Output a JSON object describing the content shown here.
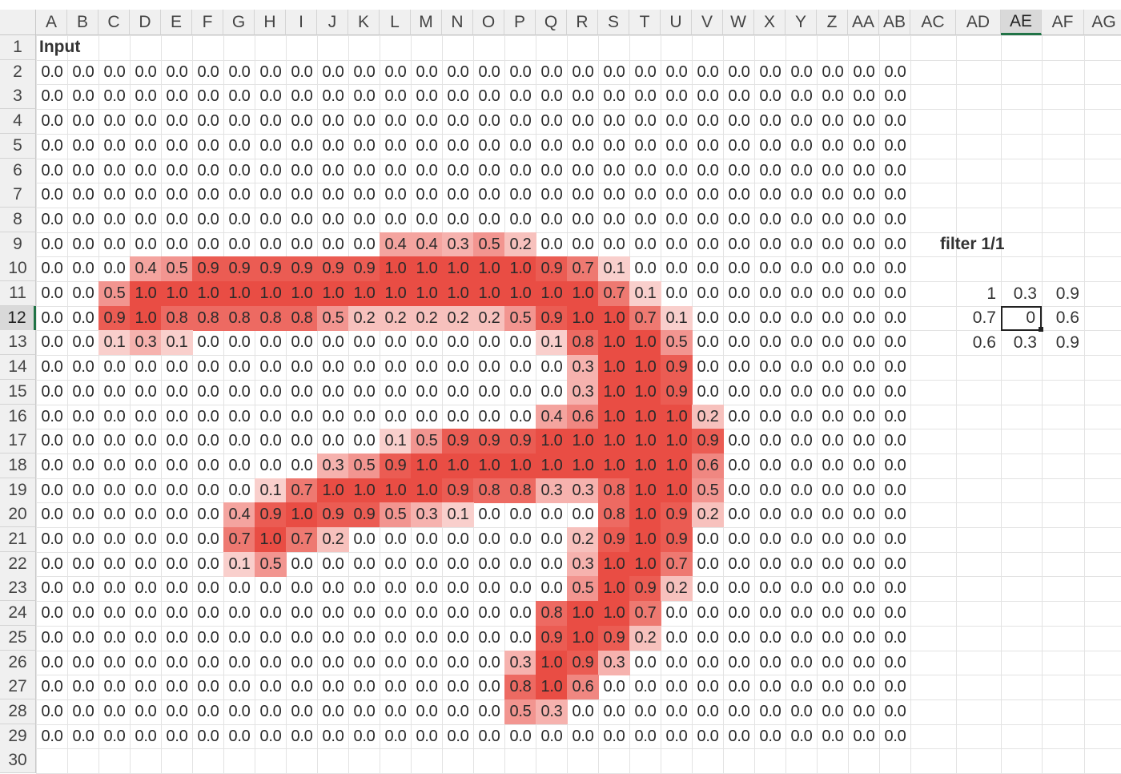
{
  "columns": [
    "A",
    "B",
    "C",
    "D",
    "E",
    "F",
    "G",
    "H",
    "I",
    "J",
    "K",
    "L",
    "M",
    "N",
    "O",
    "P",
    "Q",
    "R",
    "S",
    "T",
    "U",
    "V",
    "W",
    "X",
    "Y",
    "Z",
    "AA",
    "AB",
    "AC",
    "AD",
    "AE",
    "AF",
    "AG"
  ],
  "selected_column": "AE",
  "rows": [
    "1",
    "2",
    "3",
    "4",
    "5",
    "6",
    "7",
    "8",
    "9",
    "10",
    "11",
    "12",
    "13",
    "14",
    "15",
    "16",
    "17",
    "18",
    "19",
    "20",
    "21",
    "22",
    "23",
    "24",
    "25",
    "26",
    "27",
    "28",
    "29",
    "30"
  ],
  "selected_row": "12",
  "input_label": "Input",
  "filter_label": "filter 1/1",
  "filter": [
    [
      "1",
      "0.3",
      "0.9"
    ],
    [
      "0.7",
      "0",
      "0.6"
    ],
    [
      "0.6",
      "0.3",
      "0.9"
    ]
  ],
  "heat_color": "#e8443a",
  "grid": [
    [
      "0.0",
      "0.0",
      "0.0",
      "0.0",
      "0.0",
      "0.0",
      "0.0",
      "0.0",
      "0.0",
      "0.0",
      "0.0",
      "0.0",
      "0.0",
      "0.0",
      "0.0",
      "0.0",
      "0.0",
      "0.0",
      "0.0",
      "0.0",
      "0.0",
      "0.0",
      "0.0",
      "0.0",
      "0.0",
      "0.0",
      "0.0",
      "0.0"
    ],
    [
      "0.0",
      "0.0",
      "0.0",
      "0.0",
      "0.0",
      "0.0",
      "0.0",
      "0.0",
      "0.0",
      "0.0",
      "0.0",
      "0.0",
      "0.0",
      "0.0",
      "0.0",
      "0.0",
      "0.0",
      "0.0",
      "0.0",
      "0.0",
      "0.0",
      "0.0",
      "0.0",
      "0.0",
      "0.0",
      "0.0",
      "0.0",
      "0.0"
    ],
    [
      "0.0",
      "0.0",
      "0.0",
      "0.0",
      "0.0",
      "0.0",
      "0.0",
      "0.0",
      "0.0",
      "0.0",
      "0.0",
      "0.0",
      "0.0",
      "0.0",
      "0.0",
      "0.0",
      "0.0",
      "0.0",
      "0.0",
      "0.0",
      "0.0",
      "0.0",
      "0.0",
      "0.0",
      "0.0",
      "0.0",
      "0.0",
      "0.0"
    ],
    [
      "0.0",
      "0.0",
      "0.0",
      "0.0",
      "0.0",
      "0.0",
      "0.0",
      "0.0",
      "0.0",
      "0.0",
      "0.0",
      "0.0",
      "0.0",
      "0.0",
      "0.0",
      "0.0",
      "0.0",
      "0.0",
      "0.0",
      "0.0",
      "0.0",
      "0.0",
      "0.0",
      "0.0",
      "0.0",
      "0.0",
      "0.0",
      "0.0"
    ],
    [
      "0.0",
      "0.0",
      "0.0",
      "0.0",
      "0.0",
      "0.0",
      "0.0",
      "0.0",
      "0.0",
      "0.0",
      "0.0",
      "0.0",
      "0.0",
      "0.0",
      "0.0",
      "0.0",
      "0.0",
      "0.0",
      "0.0",
      "0.0",
      "0.0",
      "0.0",
      "0.0",
      "0.0",
      "0.0",
      "0.0",
      "0.0",
      "0.0"
    ],
    [
      "0.0",
      "0.0",
      "0.0",
      "0.0",
      "0.0",
      "0.0",
      "0.0",
      "0.0",
      "0.0",
      "0.0",
      "0.0",
      "0.0",
      "0.0",
      "0.0",
      "0.0",
      "0.0",
      "0.0",
      "0.0",
      "0.0",
      "0.0",
      "0.0",
      "0.0",
      "0.0",
      "0.0",
      "0.0",
      "0.0",
      "0.0",
      "0.0"
    ],
    [
      "0.0",
      "0.0",
      "0.0",
      "0.0",
      "0.0",
      "0.0",
      "0.0",
      "0.0",
      "0.0",
      "0.0",
      "0.0",
      "0.0",
      "0.0",
      "0.0",
      "0.0",
      "0.0",
      "0.0",
      "0.0",
      "0.0",
      "0.0",
      "0.0",
      "0.0",
      "0.0",
      "0.0",
      "0.0",
      "0.0",
      "0.0",
      "0.0"
    ],
    [
      "0.0",
      "0.0",
      "0.0",
      "0.0",
      "0.0",
      "0.0",
      "0.0",
      "0.0",
      "0.0",
      "0.0",
      "0.0",
      "0.4",
      "0.4",
      "0.3",
      "0.5",
      "0.2",
      "0.0",
      "0.0",
      "0.0",
      "0.0",
      "0.0",
      "0.0",
      "0.0",
      "0.0",
      "0.0",
      "0.0",
      "0.0",
      "0.0"
    ],
    [
      "0.0",
      "0.0",
      "0.0",
      "0.4",
      "0.5",
      "0.9",
      "0.9",
      "0.9",
      "0.9",
      "0.9",
      "0.9",
      "1.0",
      "1.0",
      "1.0",
      "1.0",
      "1.0",
      "0.9",
      "0.7",
      "0.1",
      "0.0",
      "0.0",
      "0.0",
      "0.0",
      "0.0",
      "0.0",
      "0.0",
      "0.0",
      "0.0"
    ],
    [
      "0.0",
      "0.0",
      "0.5",
      "1.0",
      "1.0",
      "1.0",
      "1.0",
      "1.0",
      "1.0",
      "1.0",
      "1.0",
      "1.0",
      "1.0",
      "1.0",
      "1.0",
      "1.0",
      "1.0",
      "1.0",
      "0.7",
      "0.1",
      "0.0",
      "0.0",
      "0.0",
      "0.0",
      "0.0",
      "0.0",
      "0.0",
      "0.0"
    ],
    [
      "0.0",
      "0.0",
      "0.9",
      "1.0",
      "0.8",
      "0.8",
      "0.8",
      "0.8",
      "0.8",
      "0.5",
      "0.2",
      "0.2",
      "0.2",
      "0.2",
      "0.2",
      "0.5",
      "0.9",
      "1.0",
      "1.0",
      "0.7",
      "0.1",
      "0.0",
      "0.0",
      "0.0",
      "0.0",
      "0.0",
      "0.0",
      "0.0"
    ],
    [
      "0.0",
      "0.0",
      "0.1",
      "0.3",
      "0.1",
      "0.0",
      "0.0",
      "0.0",
      "0.0",
      "0.0",
      "0.0",
      "0.0",
      "0.0",
      "0.0",
      "0.0",
      "0.0",
      "0.1",
      "0.8",
      "1.0",
      "1.0",
      "0.5",
      "0.0",
      "0.0",
      "0.0",
      "0.0",
      "0.0",
      "0.0",
      "0.0"
    ],
    [
      "0.0",
      "0.0",
      "0.0",
      "0.0",
      "0.0",
      "0.0",
      "0.0",
      "0.0",
      "0.0",
      "0.0",
      "0.0",
      "0.0",
      "0.0",
      "0.0",
      "0.0",
      "0.0",
      "0.0",
      "0.3",
      "1.0",
      "1.0",
      "0.9",
      "0.0",
      "0.0",
      "0.0",
      "0.0",
      "0.0",
      "0.0",
      "0.0"
    ],
    [
      "0.0",
      "0.0",
      "0.0",
      "0.0",
      "0.0",
      "0.0",
      "0.0",
      "0.0",
      "0.0",
      "0.0",
      "0.0",
      "0.0",
      "0.0",
      "0.0",
      "0.0",
      "0.0",
      "0.0",
      "0.3",
      "1.0",
      "1.0",
      "0.9",
      "0.0",
      "0.0",
      "0.0",
      "0.0",
      "0.0",
      "0.0",
      "0.0"
    ],
    [
      "0.0",
      "0.0",
      "0.0",
      "0.0",
      "0.0",
      "0.0",
      "0.0",
      "0.0",
      "0.0",
      "0.0",
      "0.0",
      "0.0",
      "0.0",
      "0.0",
      "0.0",
      "0.0",
      "0.4",
      "0.6",
      "1.0",
      "1.0",
      "1.0",
      "0.2",
      "0.0",
      "0.0",
      "0.0",
      "0.0",
      "0.0",
      "0.0"
    ],
    [
      "0.0",
      "0.0",
      "0.0",
      "0.0",
      "0.0",
      "0.0",
      "0.0",
      "0.0",
      "0.0",
      "0.0",
      "0.0",
      "0.1",
      "0.5",
      "0.9",
      "0.9",
      "0.9",
      "1.0",
      "1.0",
      "1.0",
      "1.0",
      "1.0",
      "0.9",
      "0.0",
      "0.0",
      "0.0",
      "0.0",
      "0.0",
      "0.0"
    ],
    [
      "0.0",
      "0.0",
      "0.0",
      "0.0",
      "0.0",
      "0.0",
      "0.0",
      "0.0",
      "0.0",
      "0.3",
      "0.5",
      "0.9",
      "1.0",
      "1.0",
      "1.0",
      "1.0",
      "1.0",
      "1.0",
      "1.0",
      "1.0",
      "1.0",
      "0.6",
      "0.0",
      "0.0",
      "0.0",
      "0.0",
      "0.0",
      "0.0"
    ],
    [
      "0.0",
      "0.0",
      "0.0",
      "0.0",
      "0.0",
      "0.0",
      "0.0",
      "0.1",
      "0.7",
      "1.0",
      "1.0",
      "1.0",
      "1.0",
      "0.9",
      "0.8",
      "0.8",
      "0.3",
      "0.3",
      "0.8",
      "1.0",
      "1.0",
      "0.5",
      "0.0",
      "0.0",
      "0.0",
      "0.0",
      "0.0",
      "0.0"
    ],
    [
      "0.0",
      "0.0",
      "0.0",
      "0.0",
      "0.0",
      "0.0",
      "0.4",
      "0.9",
      "1.0",
      "0.9",
      "0.9",
      "0.5",
      "0.3",
      "0.1",
      "0.0",
      "0.0",
      "0.0",
      "0.0",
      "0.8",
      "1.0",
      "0.9",
      "0.2",
      "0.0",
      "0.0",
      "0.0",
      "0.0",
      "0.0",
      "0.0"
    ],
    [
      "0.0",
      "0.0",
      "0.0",
      "0.0",
      "0.0",
      "0.0",
      "0.7",
      "1.0",
      "0.7",
      "0.2",
      "0.0",
      "0.0",
      "0.0",
      "0.0",
      "0.0",
      "0.0",
      "0.0",
      "0.2",
      "0.9",
      "1.0",
      "0.9",
      "0.0",
      "0.0",
      "0.0",
      "0.0",
      "0.0",
      "0.0",
      "0.0"
    ],
    [
      "0.0",
      "0.0",
      "0.0",
      "0.0",
      "0.0",
      "0.0",
      "0.1",
      "0.5",
      "0.0",
      "0.0",
      "0.0",
      "0.0",
      "0.0",
      "0.0",
      "0.0",
      "0.0",
      "0.0",
      "0.3",
      "1.0",
      "1.0",
      "0.7",
      "0.0",
      "0.0",
      "0.0",
      "0.0",
      "0.0",
      "0.0",
      "0.0"
    ],
    [
      "0.0",
      "0.0",
      "0.0",
      "0.0",
      "0.0",
      "0.0",
      "0.0",
      "0.0",
      "0.0",
      "0.0",
      "0.0",
      "0.0",
      "0.0",
      "0.0",
      "0.0",
      "0.0",
      "0.0",
      "0.5",
      "1.0",
      "0.9",
      "0.2",
      "0.0",
      "0.0",
      "0.0",
      "0.0",
      "0.0",
      "0.0",
      "0.0"
    ],
    [
      "0.0",
      "0.0",
      "0.0",
      "0.0",
      "0.0",
      "0.0",
      "0.0",
      "0.0",
      "0.0",
      "0.0",
      "0.0",
      "0.0",
      "0.0",
      "0.0",
      "0.0",
      "0.0",
      "0.8",
      "1.0",
      "1.0",
      "0.7",
      "0.0",
      "0.0",
      "0.0",
      "0.0",
      "0.0",
      "0.0",
      "0.0",
      "0.0"
    ],
    [
      "0.0",
      "0.0",
      "0.0",
      "0.0",
      "0.0",
      "0.0",
      "0.0",
      "0.0",
      "0.0",
      "0.0",
      "0.0",
      "0.0",
      "0.0",
      "0.0",
      "0.0",
      "0.0",
      "0.9",
      "1.0",
      "0.9",
      "0.2",
      "0.0",
      "0.0",
      "0.0",
      "0.0",
      "0.0",
      "0.0",
      "0.0",
      "0.0"
    ],
    [
      "0.0",
      "0.0",
      "0.0",
      "0.0",
      "0.0",
      "0.0",
      "0.0",
      "0.0",
      "0.0",
      "0.0",
      "0.0",
      "0.0",
      "0.0",
      "0.0",
      "0.0",
      "0.3",
      "1.0",
      "0.9",
      "0.3",
      "0.0",
      "0.0",
      "0.0",
      "0.0",
      "0.0",
      "0.0",
      "0.0",
      "0.0",
      "0.0"
    ],
    [
      "0.0",
      "0.0",
      "0.0",
      "0.0",
      "0.0",
      "0.0",
      "0.0",
      "0.0",
      "0.0",
      "0.0",
      "0.0",
      "0.0",
      "0.0",
      "0.0",
      "0.0",
      "0.8",
      "1.0",
      "0.6",
      "0.0",
      "0.0",
      "0.0",
      "0.0",
      "0.0",
      "0.0",
      "0.0",
      "0.0",
      "0.0",
      "0.0"
    ],
    [
      "0.0",
      "0.0",
      "0.0",
      "0.0",
      "0.0",
      "0.0",
      "0.0",
      "0.0",
      "0.0",
      "0.0",
      "0.0",
      "0.0",
      "0.0",
      "0.0",
      "0.0",
      "0.5",
      "0.3",
      "0.0",
      "0.0",
      "0.0",
      "0.0",
      "0.0",
      "0.0",
      "0.0",
      "0.0",
      "0.0",
      "0.0",
      "0.0"
    ],
    [
      "0.0",
      "0.0",
      "0.0",
      "0.0",
      "0.0",
      "0.0",
      "0.0",
      "0.0",
      "0.0",
      "0.0",
      "0.0",
      "0.0",
      "0.0",
      "0.0",
      "0.0",
      "0.0",
      "0.0",
      "0.0",
      "0.0",
      "0.0",
      "0.0",
      "0.0",
      "0.0",
      "0.0",
      "0.0",
      "0.0",
      "0.0",
      "0.0"
    ]
  ]
}
